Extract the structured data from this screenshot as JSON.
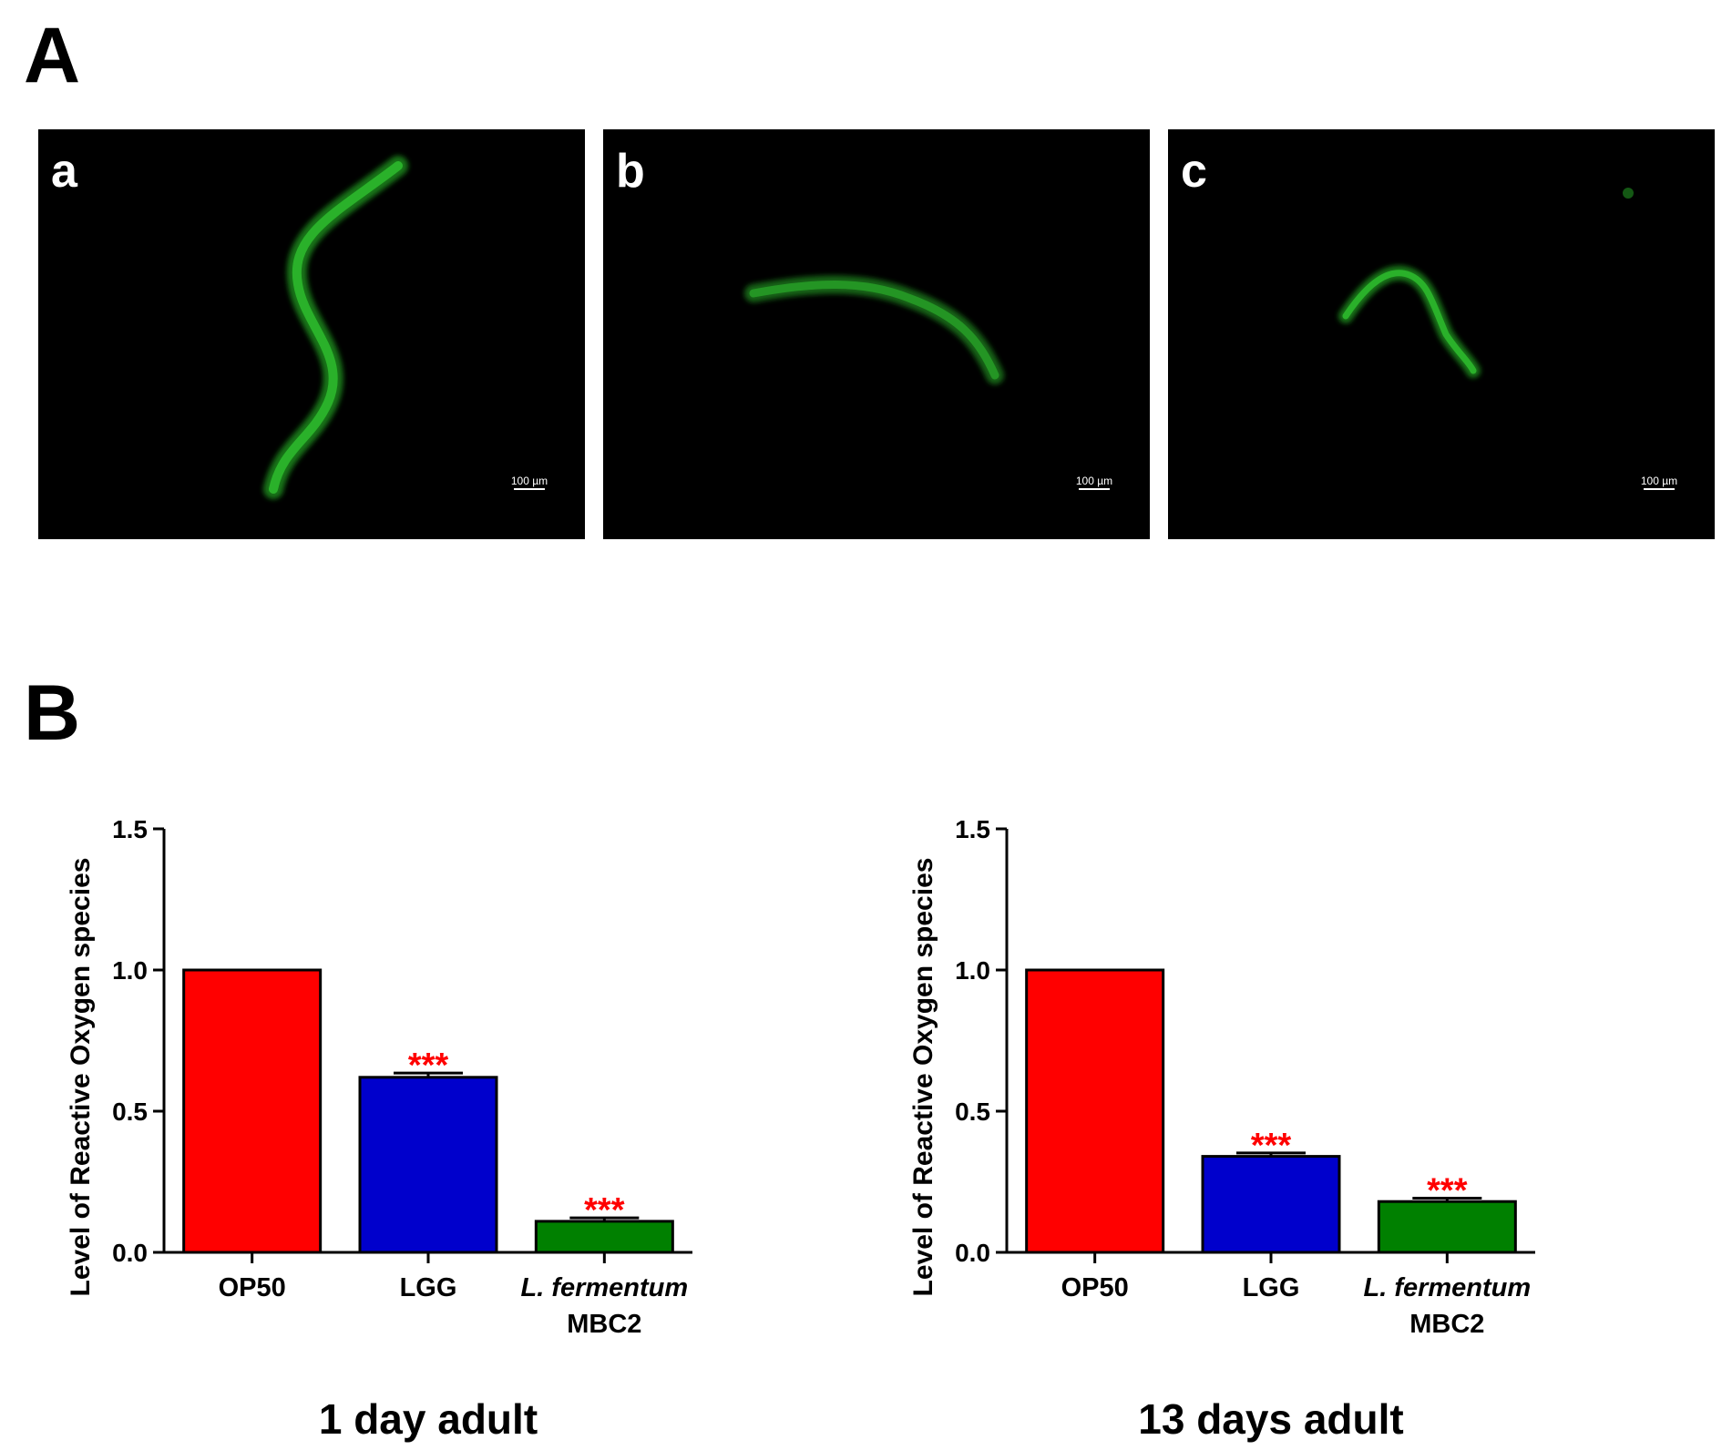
{
  "figure": {
    "panel_A_label": "A",
    "panel_B_label": "B",
    "micrographs": [
      {
        "label": "a",
        "scale_label": "100 µm"
      },
      {
        "label": "b",
        "scale_label": "100 µm"
      },
      {
        "label": "c",
        "scale_label": "100 µm"
      }
    ]
  },
  "chart_data": [
    {
      "type": "bar",
      "title": "",
      "footer": "1 day adult",
      "xlabel": "",
      "ylabel": "Level of Reactive Oxygen species",
      "ylim": [
        0,
        1.5
      ],
      "yticks": [
        "0.0",
        "0.5",
        "1.0",
        "1.5"
      ],
      "grid": false,
      "categories": [
        {
          "lines": [
            "OP50"
          ],
          "italic": [
            false
          ]
        },
        {
          "lines": [
            "LGG"
          ],
          "italic": [
            false
          ]
        },
        {
          "lines": [
            "L. fermentum",
            "MBC2"
          ],
          "italic": [
            true,
            false
          ]
        }
      ],
      "values": [
        1.0,
        0.62,
        0.11
      ],
      "errors": [
        0.0,
        0.015,
        0.012
      ],
      "colors": [
        "#ff0000",
        "#0000cc",
        "#008000"
      ],
      "significance": [
        "",
        "***",
        "***"
      ],
      "significance_color": "#ff0000"
    },
    {
      "type": "bar",
      "title": "",
      "footer": "13 days adult",
      "xlabel": "",
      "ylabel": "Level of Reactive Oxygen species",
      "ylim": [
        0,
        1.5
      ],
      "yticks": [
        "0.0",
        "0.5",
        "1.0",
        "1.5"
      ],
      "grid": false,
      "categories": [
        {
          "lines": [
            "OP50"
          ],
          "italic": [
            false
          ]
        },
        {
          "lines": [
            "LGG"
          ],
          "italic": [
            false
          ]
        },
        {
          "lines": [
            "L. fermentum",
            "MBC2"
          ],
          "italic": [
            true,
            false
          ]
        }
      ],
      "values": [
        1.0,
        0.34,
        0.18
      ],
      "errors": [
        0.0,
        0.012,
        0.012
      ],
      "colors": [
        "#ff0000",
        "#0000cc",
        "#008000"
      ],
      "significance": [
        "",
        "***",
        "***"
      ],
      "significance_color": "#ff0000"
    }
  ]
}
